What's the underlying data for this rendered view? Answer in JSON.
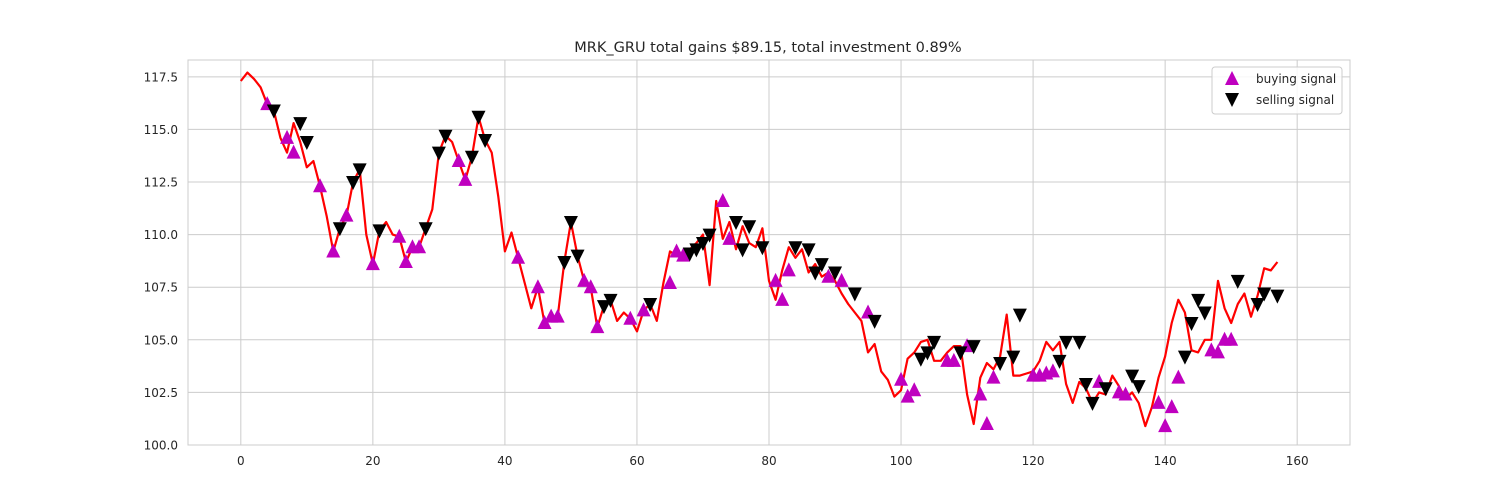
{
  "chart_data": {
    "type": "line",
    "title": "MRK_GRU total gains $89.15, total investment 0.89%",
    "xlabel": "",
    "ylabel": "",
    "xlim": [
      -8,
      168
    ],
    "ylim": [
      100,
      118.3
    ],
    "xticks": [
      0,
      20,
      40,
      60,
      80,
      100,
      120,
      140,
      160
    ],
    "yticks": [
      100.0,
      102.5,
      105.0,
      107.5,
      110.0,
      112.5,
      115.0,
      117.5
    ],
    "xtick_labels": [
      "0",
      "20",
      "40",
      "60",
      "80",
      "100",
      "120",
      "140",
      "160"
    ],
    "ytick_labels": [
      "100.0",
      "102.5",
      "105.0",
      "107.5",
      "110.0",
      "112.5",
      "115.0",
      "117.5"
    ],
    "grid": true,
    "legend_position": "top-right",
    "colors": {
      "line": "#ff0000",
      "buy": "#bf00bf",
      "sell": "#000000",
      "grid": "#cccccc",
      "frame": "#cccccc"
    },
    "price": [
      117.3,
      117.7,
      117.4,
      117.0,
      116.2,
      115.9,
      114.6,
      113.9,
      115.3,
      114.4,
      113.2,
      113.5,
      112.3,
      110.9,
      109.2,
      110.3,
      110.9,
      112.5,
      113.1,
      110.0,
      108.6,
      110.2,
      110.6,
      110.0,
      109.9,
      108.7,
      109.4,
      109.4,
      110.3,
      111.2,
      113.9,
      114.7,
      114.4,
      113.5,
      112.6,
      113.7,
      115.6,
      114.5,
      113.9,
      111.8,
      109.2,
      110.1,
      108.9,
      107.7,
      106.5,
      107.5,
      105.8,
      106.1,
      106.1,
      108.7,
      110.6,
      109.0,
      107.8,
      107.5,
      105.6,
      106.6,
      106.9,
      105.9,
      106.3,
      106.0,
      105.4,
      106.4,
      106.7,
      105.9,
      107.7,
      109.2,
      109.0,
      109.1,
      109.3,
      109.6,
      110.0,
      107.6,
      111.6,
      109.8,
      110.6,
      109.3,
      110.4,
      109.6,
      109.4,
      110.3,
      107.8,
      106.9,
      108.3,
      109.4,
      108.9,
      109.3,
      108.2,
      108.6,
      108.0,
      108.2,
      107.8,
      107.2,
      106.7,
      106.3,
      105.9,
      104.4,
      104.8,
      103.5,
      103.1,
      102.3,
      102.6,
      104.1,
      104.4,
      104.9,
      105.0,
      104.0,
      104.0,
      104.4,
      104.7,
      104.7,
      102.4,
      101.0,
      103.2,
      103.9,
      103.6,
      104.2,
      106.2,
      103.3,
      103.3,
      103.4,
      103.5,
      104.0,
      104.9,
      104.5,
      104.9,
      102.9,
      102.0,
      103.0,
      102.7,
      102.0,
      102.5,
      102.4,
      103.3,
      102.8,
      102.2,
      102.5,
      102.0,
      100.9,
      101.8,
      103.2,
      104.2,
      105.8,
      106.9,
      106.3,
      104.5,
      104.4,
      105.0,
      105.0,
      107.8,
      106.5,
      105.8,
      106.7,
      107.2,
      106.1,
      107.1,
      108.4,
      108.3,
      108.7
    ],
    "series": [
      {
        "name": "buying signal",
        "marker": "triangle-up",
        "points": [
          [
            4,
            116.2
          ],
          [
            7,
            114.6
          ],
          [
            8,
            113.9
          ],
          [
            12,
            112.3
          ],
          [
            14,
            109.2
          ],
          [
            16,
            110.9
          ],
          [
            20,
            108.6
          ],
          [
            24,
            109.9
          ],
          [
            25,
            108.7
          ],
          [
            26,
            109.4
          ],
          [
            27,
            109.4
          ],
          [
            33,
            113.5
          ],
          [
            34,
            112.6
          ],
          [
            42,
            108.9
          ],
          [
            45,
            107.5
          ],
          [
            46,
            105.8
          ],
          [
            47,
            106.1
          ],
          [
            48,
            106.1
          ],
          [
            52,
            107.8
          ],
          [
            53,
            107.5
          ],
          [
            54,
            105.6
          ],
          [
            59,
            106.0
          ],
          [
            61,
            106.4
          ],
          [
            65,
            107.7
          ],
          [
            66,
            109.2
          ],
          [
            67,
            109.0
          ],
          [
            73,
            111.6
          ],
          [
            74,
            109.8
          ],
          [
            81,
            107.8
          ],
          [
            82,
            106.9
          ],
          [
            83,
            108.3
          ],
          [
            89,
            108.0
          ],
          [
            91,
            107.8
          ],
          [
            95,
            106.3
          ],
          [
            100,
            103.1
          ],
          [
            101,
            102.3
          ],
          [
            102,
            102.6
          ],
          [
            107,
            104.0
          ],
          [
            108,
            104.0
          ],
          [
            110,
            104.7
          ],
          [
            112,
            102.4
          ],
          [
            113,
            101.0
          ],
          [
            114,
            103.2
          ],
          [
            120,
            103.3
          ],
          [
            121,
            103.3
          ],
          [
            122,
            103.4
          ],
          [
            123,
            103.5
          ],
          [
            130,
            103.0
          ],
          [
            133,
            102.5
          ],
          [
            134,
            102.4
          ],
          [
            139,
            102.0
          ],
          [
            140,
            100.9
          ],
          [
            141,
            101.8
          ],
          [
            142,
            103.2
          ],
          [
            147,
            104.5
          ],
          [
            148,
            104.4
          ],
          [
            149,
            105.0
          ],
          [
            150,
            105.0
          ]
        ]
      },
      {
        "name": "selling signal",
        "marker": "triangle-down",
        "points": [
          [
            5,
            115.9
          ],
          [
            9,
            115.3
          ],
          [
            10,
            114.4
          ],
          [
            15,
            110.3
          ],
          [
            17,
            112.5
          ],
          [
            18,
            113.1
          ],
          [
            21,
            110.2
          ],
          [
            28,
            110.3
          ],
          [
            30,
            113.9
          ],
          [
            31,
            114.7
          ],
          [
            35,
            113.7
          ],
          [
            36,
            115.6
          ],
          [
            37,
            114.5
          ],
          [
            49,
            108.7
          ],
          [
            50,
            110.6
          ],
          [
            51,
            109.0
          ],
          [
            55,
            106.6
          ],
          [
            56,
            106.9
          ],
          [
            62,
            106.7
          ],
          [
            68,
            109.1
          ],
          [
            69,
            109.3
          ],
          [
            70,
            109.6
          ],
          [
            71,
            110.0
          ],
          [
            75,
            110.6
          ],
          [
            76,
            109.3
          ],
          [
            77,
            110.4
          ],
          [
            79,
            109.4
          ],
          [
            84,
            109.4
          ],
          [
            86,
            109.3
          ],
          [
            87,
            108.2
          ],
          [
            88,
            108.6
          ],
          [
            90,
            108.2
          ],
          [
            93,
            107.2
          ],
          [
            96,
            105.9
          ],
          [
            103,
            104.1
          ],
          [
            104,
            104.4
          ],
          [
            105,
            104.9
          ],
          [
            109,
            104.4
          ],
          [
            111,
            104.7
          ],
          [
            115,
            103.9
          ],
          [
            117,
            104.2
          ],
          [
            118,
            106.2
          ],
          [
            124,
            104.0
          ],
          [
            125,
            104.9
          ],
          [
            127,
            104.9
          ],
          [
            128,
            102.9
          ],
          [
            129,
            102.0
          ],
          [
            131,
            102.7
          ],
          [
            135,
            103.3
          ],
          [
            136,
            102.8
          ],
          [
            143,
            104.2
          ],
          [
            144,
            105.8
          ],
          [
            145,
            106.9
          ],
          [
            146,
            106.3
          ],
          [
            151,
            107.8
          ],
          [
            154,
            106.7
          ],
          [
            155,
            107.2
          ],
          [
            157,
            107.1
          ]
        ]
      }
    ]
  }
}
